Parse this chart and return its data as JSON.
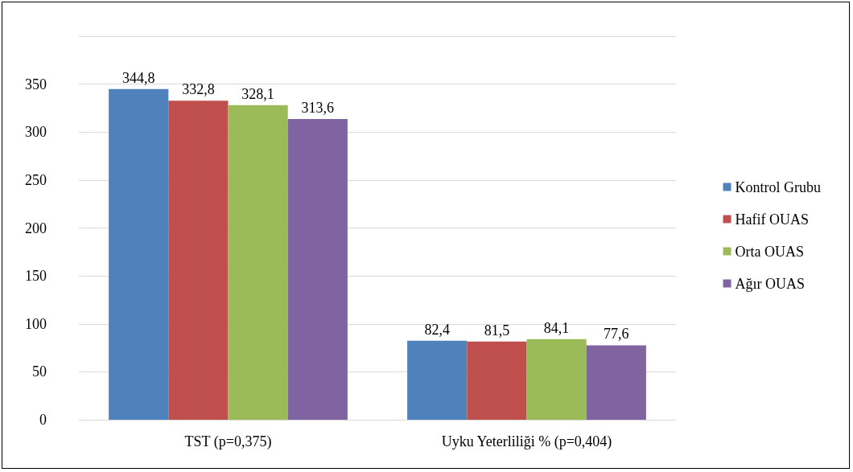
{
  "chart_data": {
    "type": "bar",
    "categories": [
      "TST (p=0,375)",
      "Uyku Yeterliliği % (p=0,404)"
    ],
    "series": [
      {
        "name": "Kontrol Grubu",
        "color": "#4f81bd",
        "values": [
          344.8,
          82.4
        ],
        "value_labels": [
          "344,8",
          "82,4"
        ]
      },
      {
        "name": "Hafif OUAS",
        "color": "#c0504d",
        "values": [
          332.8,
          81.5
        ],
        "value_labels": [
          "332,8",
          "81,5"
        ]
      },
      {
        "name": "Orta OUAS",
        "color": "#9bbb59",
        "values": [
          328.1,
          84.1
        ],
        "value_labels": [
          "328,1",
          "84,1"
        ]
      },
      {
        "name": "Ağır OUAS",
        "color": "#8064a2",
        "values": [
          313.6,
          77.6
        ],
        "value_labels": [
          "313,6",
          "77,6"
        ]
      }
    ],
    "ylim": [
      0,
      400
    ],
    "yticks": [
      0,
      50,
      100,
      150,
      200,
      250,
      300,
      350,
      {
        "value": 400,
        "label": null
      }
    ],
    "grid": "y",
    "legend": "right"
  }
}
